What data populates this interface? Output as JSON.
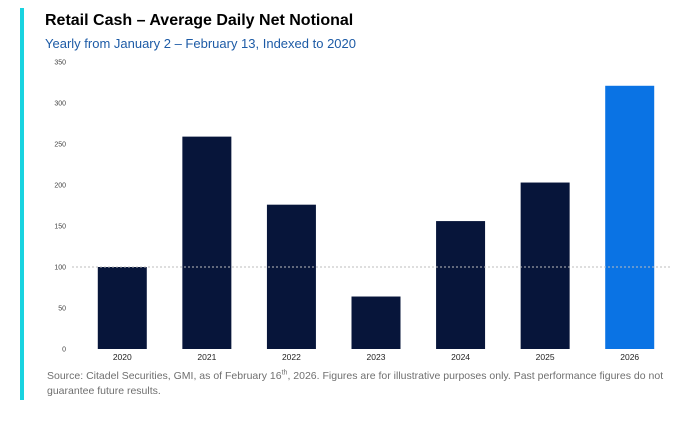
{
  "title": "Retail Cash – Average Daily Net Notional",
  "subtitle": "Yearly from January 2 – February 13, Indexed to 2020",
  "footnote": {
    "before_sup": "Source: Citadel Securities, GMI, as of February 16",
    "sup": "th",
    "after_sup": ", 2026. Figures are for illustrative purposes only. Past performance figures do not guarantee future results."
  },
  "colors": {
    "accent": "#19d3e0",
    "bar": "#07153a",
    "highlight_bar": "#0a73e4",
    "reference_line": "#bdbdbd",
    "axis_text": "#444444"
  },
  "chart_data": {
    "type": "bar",
    "categories": [
      "2020",
      "2021",
      "2022",
      "2023",
      "2024",
      "2025",
      "2026"
    ],
    "values": [
      100,
      259,
      176,
      64,
      156,
      203,
      321
    ],
    "highlight_index": 6,
    "reference_line": 100,
    "ylim": [
      0,
      350
    ],
    "yticks": [
      0,
      50,
      100,
      150,
      200,
      250,
      300,
      350
    ],
    "xlabel": "",
    "ylabel": "",
    "grid": false,
    "legend": "none"
  }
}
